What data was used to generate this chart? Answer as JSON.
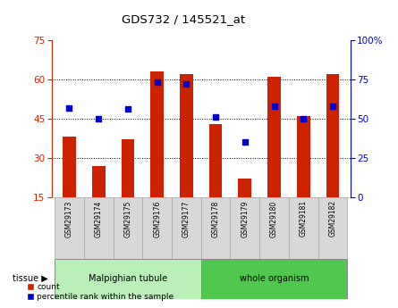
{
  "title": "GDS732 / 145521_at",
  "samples": [
    "GSM29173",
    "GSM29174",
    "GSM29175",
    "GSM29176",
    "GSM29177",
    "GSM29178",
    "GSM29179",
    "GSM29180",
    "GSM29181",
    "GSM29182"
  ],
  "counts": [
    38,
    27,
    37,
    63,
    62,
    43,
    22,
    61,
    46,
    62
  ],
  "percentiles": [
    57,
    50,
    56,
    73,
    72,
    51,
    35,
    58,
    50,
    58
  ],
  "tissue_groups": [
    {
      "label": "Malpighian tubule",
      "start": 0,
      "end": 5
    },
    {
      "label": "whole organism",
      "start": 5,
      "end": 10
    }
  ],
  "ylim_left": [
    15,
    75
  ],
  "ylim_right": [
    0,
    100
  ],
  "yticks_left": [
    15,
    30,
    45,
    60,
    75
  ],
  "yticks_right": [
    0,
    25,
    50,
    75,
    100
  ],
  "bar_color": "#CC2200",
  "dot_color": "#0000CC",
  "bar_width": 0.45,
  "bg_color": "#ffffff",
  "label_count": "count",
  "label_pct": "percentile rank within the sample",
  "tissue_label": "tissue",
  "left_axis_color": "#CC2200",
  "right_axis_color": "#0000CC",
  "light_green": "#b8f0b8",
  "mid_green": "#50c850",
  "gray_box": "#d8d8d8",
  "n_samples": 10
}
